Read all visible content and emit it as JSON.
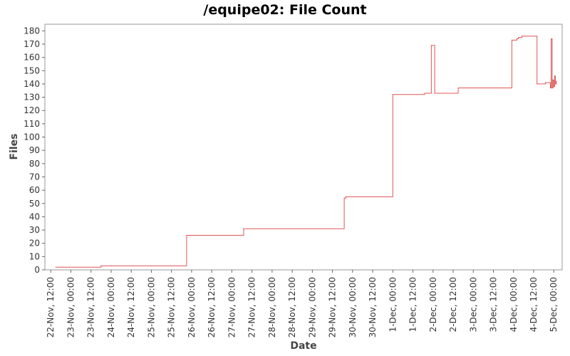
{
  "chart_data": {
    "type": "line",
    "title": "/equipe02: File Count",
    "xlabel": "Date",
    "ylabel": "Files",
    "ylim": [
      0,
      185
    ],
    "xlim": [
      "2010-11-22T08:30",
      "2010-12-05T05:00"
    ],
    "yticks": [
      0,
      10,
      20,
      30,
      40,
      50,
      60,
      70,
      80,
      90,
      100,
      110,
      120,
      130,
      140,
      150,
      160,
      170,
      180
    ],
    "xticks": [
      {
        "label": "22-Nov, 12:00",
        "x": "2010-11-22T12:00"
      },
      {
        "label": "23-Nov, 00:00",
        "x": "2010-11-23T00:00"
      },
      {
        "label": "23-Nov, 12:00",
        "x": "2010-11-23T12:00"
      },
      {
        "label": "24-Nov, 00:00",
        "x": "2010-11-24T00:00"
      },
      {
        "label": "24-Nov, 12:00",
        "x": "2010-11-24T12:00"
      },
      {
        "label": "25-Nov, 00:00",
        "x": "2010-11-25T00:00"
      },
      {
        "label": "25-Nov, 12:00",
        "x": "2010-11-25T12:00"
      },
      {
        "label": "26-Nov, 00:00",
        "x": "2010-11-26T00:00"
      },
      {
        "label": "26-Nov, 12:00",
        "x": "2010-11-26T12:00"
      },
      {
        "label": "27-Nov, 00:00",
        "x": "2010-11-27T00:00"
      },
      {
        "label": "27-Nov, 12:00",
        "x": "2010-11-27T12:00"
      },
      {
        "label": "28-Nov, 00:00",
        "x": "2010-11-28T00:00"
      },
      {
        "label": "28-Nov, 12:00",
        "x": "2010-11-28T12:00"
      },
      {
        "label": "29-Nov, 00:00",
        "x": "2010-11-29T00:00"
      },
      {
        "label": "29-Nov, 12:00",
        "x": "2010-11-29T12:00"
      },
      {
        "label": "30-Nov, 00:00",
        "x": "2010-11-30T00:00"
      },
      {
        "label": "30-Nov, 12:00",
        "x": "2010-11-30T12:00"
      },
      {
        "label": "1-Dec, 00:00",
        "x": "2010-12-01T00:00"
      },
      {
        "label": "1-Dec, 12:00",
        "x": "2010-12-01T12:00"
      },
      {
        "label": "2-Dec, 00:00",
        "x": "2010-12-02T00:00"
      },
      {
        "label": "2-Dec, 12:00",
        "x": "2010-12-02T12:00"
      },
      {
        "label": "3-Dec, 00:00",
        "x": "2010-12-03T00:00"
      },
      {
        "label": "3-Dec, 12:00",
        "x": "2010-12-03T12:00"
      },
      {
        "label": "4-Dec, 00:00",
        "x": "2010-12-04T00:00"
      },
      {
        "label": "4-Dec, 12:00",
        "x": "2010-12-04T12:00"
      },
      {
        "label": "5-Dec, 00:00",
        "x": "2010-12-05T00:00"
      }
    ],
    "grid": false,
    "step": true,
    "series": [
      {
        "color": "#e05555",
        "points": [
          {
            "x": "2010-11-22T15:00",
            "y": 2
          },
          {
            "x": "2010-11-23T18:00",
            "y": 3
          },
          {
            "x": "2010-11-25T21:00",
            "y": 26
          },
          {
            "x": "2010-11-27T07:00",
            "y": 31
          },
          {
            "x": "2010-11-29T19:00",
            "y": 54
          },
          {
            "x": "2010-11-29T20:00",
            "y": 55
          },
          {
            "x": "2010-12-01T00:00",
            "y": 132
          },
          {
            "x": "2010-12-01T19:00",
            "y": 133
          },
          {
            "x": "2010-12-01T23:00",
            "y": 169
          },
          {
            "x": "2010-12-02T01:00",
            "y": 133
          },
          {
            "x": "2010-12-02T15:00",
            "y": 137
          },
          {
            "x": "2010-12-03T23:00",
            "y": 173
          },
          {
            "x": "2010-12-04T02:00",
            "y": 174
          },
          {
            "x": "2010-12-04T03:00",
            "y": 175
          },
          {
            "x": "2010-12-04T05:00",
            "y": 176
          },
          {
            "x": "2010-12-04T14:00",
            "y": 140
          },
          {
            "x": "2010-12-04T19:00",
            "y": 141
          },
          {
            "x": "2010-12-04T22:00",
            "y": 137
          },
          {
            "x": "2010-12-04T22:30",
            "y": 174
          },
          {
            "x": "2010-12-04T23:00",
            "y": 137
          },
          {
            "x": "2010-12-04T23:30",
            "y": 143
          },
          {
            "x": "2010-12-05T00:00",
            "y": 138
          },
          {
            "x": "2010-12-05T00:30",
            "y": 146
          },
          {
            "x": "2010-12-05T01:00",
            "y": 140
          },
          {
            "x": "2010-12-05T01:30",
            "y": 142
          }
        ]
      }
    ]
  }
}
